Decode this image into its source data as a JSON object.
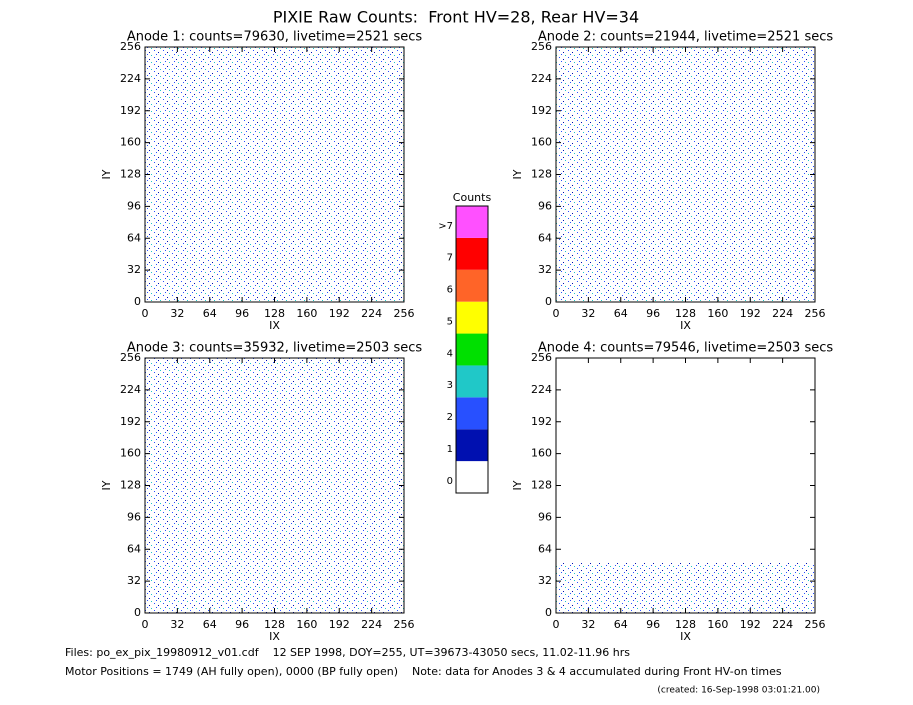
{
  "title": "PIXIE Raw Counts:  Front HV=28, Rear HV=34",
  "panels": [
    {
      "type": "heatmap",
      "title": "Anode 1: counts=79630, livetime=2521 secs",
      "xlabel": "IX",
      "ylabel": "IY",
      "xlim": [
        0,
        256
      ],
      "ylim": [
        0,
        256
      ],
      "xticks": [
        0,
        32,
        64,
        96,
        128,
        160,
        192,
        224,
        256
      ],
      "yticks": [
        0,
        32,
        64,
        96,
        128,
        160,
        192,
        224,
        256
      ]
    },
    {
      "type": "heatmap",
      "title": "Anode 2: counts=21944, livetime=2521 secs",
      "xlabel": "IX",
      "ylabel": "IY",
      "xlim": [
        0,
        256
      ],
      "ylim": [
        0,
        256
      ],
      "xticks": [
        0,
        32,
        64,
        96,
        128,
        160,
        192,
        224,
        256
      ],
      "yticks": [
        0,
        32,
        64,
        96,
        128,
        160,
        192,
        224,
        256
      ]
    },
    {
      "type": "heatmap",
      "title": "Anode 3: counts=35932, livetime=2503 secs",
      "xlabel": "IX",
      "ylabel": "IY",
      "xlim": [
        0,
        256
      ],
      "ylim": [
        0,
        256
      ],
      "xticks": [
        0,
        32,
        64,
        96,
        128,
        160,
        192,
        224,
        256
      ],
      "yticks": [
        0,
        32,
        64,
        96,
        128,
        160,
        192,
        224,
        256
      ]
    },
    {
      "type": "heatmap",
      "title": "Anode 4: counts=79546, livetime=2503 secs",
      "xlabel": "IX",
      "ylabel": "IY",
      "xlim": [
        0,
        256
      ],
      "ylim": [
        0,
        256
      ],
      "xticks": [
        0,
        32,
        64,
        96,
        128,
        160,
        192,
        224,
        256
      ],
      "yticks": [
        0,
        32,
        64,
        96,
        128,
        160,
        192,
        224,
        256
      ]
    }
  ],
  "colorbar": {
    "title": "Counts",
    "levels": [
      {
        "label": "0",
        "color": "#ffffff"
      },
      {
        "label": "1",
        "color": "#0010b0"
      },
      {
        "label": "2",
        "color": "#2850ff"
      },
      {
        "label": "3",
        "color": "#20c8c8"
      },
      {
        "label": "4",
        "color": "#00e000"
      },
      {
        "label": "5",
        "color": "#ffff00"
      },
      {
        "label": "6",
        "color": "#ff6428"
      },
      {
        "label": "7",
        "color": "#ff0000"
      },
      {
        "label": ">7",
        "color": "#ff50ff"
      }
    ]
  },
  "footer": {
    "files": "Files: po_ex_pix_19980912_v01.cdf    12 SEP 1998, DOY=255, UT=39673-43050 secs, 11.02-11.96 hrs",
    "motor": "Motor Positions = 1749 (AH fully open), 0000 (BP fully open)    Note: data for Anodes 3 & 4 accumulated during Front HV-on times",
    "created": "(created: 16-Sep-1998 03:01:21.00)"
  }
}
